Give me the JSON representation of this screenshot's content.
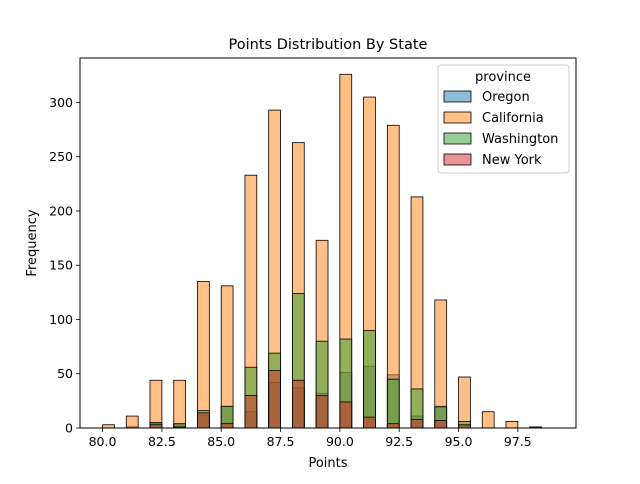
{
  "chart_data": {
    "type": "bar",
    "title": "Points Distribution By State",
    "xlabel": "Points",
    "ylabel": "Frequency",
    "xlim": [
      79.05,
      99.95
    ],
    "ylim": [
      0,
      341
    ],
    "xticks": [
      80.0,
      82.5,
      85.0,
      87.5,
      90.0,
      92.5,
      95.0,
      97.5
    ],
    "xtick_labels": [
      "80.0",
      "82.5",
      "85.0",
      "87.5",
      "90.0",
      "92.5",
      "95.0",
      "97.5"
    ],
    "yticks": [
      0,
      50,
      100,
      150,
      200,
      250,
      300
    ],
    "ytick_labels": [
      "0",
      "50",
      "100",
      "150",
      "200",
      "250",
      "300"
    ],
    "bins": [
      80,
      81,
      82,
      83,
      84,
      85,
      86,
      87,
      88,
      89,
      90,
      91,
      92,
      93,
      94,
      95,
      96,
      97,
      98
    ],
    "bin_width": 0.5,
    "legend": {
      "title": "province",
      "position": "top-right"
    },
    "series": [
      {
        "name": "Oregon",
        "color": "#1f77b4",
        "values": [
          0,
          1,
          4,
          3,
          12,
          20,
          15,
          42,
          37,
          32,
          51,
          57,
          49,
          11,
          19,
          2,
          0,
          0,
          1
        ]
      },
      {
        "name": "California",
        "color": "#ff7f0e",
        "values": [
          3,
          11,
          44,
          44,
          135,
          131,
          233,
          293,
          263,
          173,
          326,
          305,
          279,
          213,
          118,
          47,
          15,
          6,
          1
        ]
      },
      {
        "name": "Washington",
        "color": "#2ca02c",
        "values": [
          0,
          0,
          5,
          4,
          16,
          20,
          56,
          69,
          124,
          80,
          82,
          90,
          45,
          36,
          20,
          6,
          0,
          0,
          0
        ]
      },
      {
        "name": "New York",
        "color": "#d62728",
        "values": [
          0,
          0,
          3,
          1,
          14,
          4,
          30,
          53,
          44,
          30,
          24,
          10,
          4,
          8,
          7,
          3,
          0,
          0,
          0
        ]
      }
    ]
  }
}
